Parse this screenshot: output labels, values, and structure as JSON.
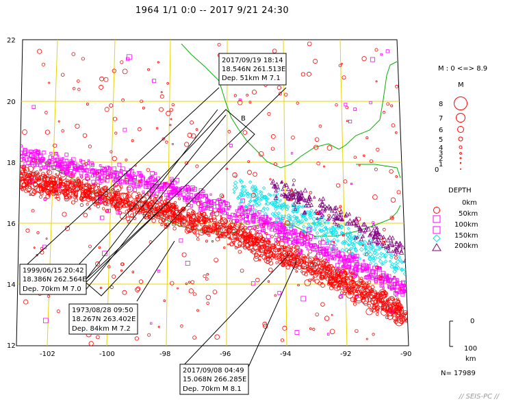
{
  "title": "1964 1/1 0:0 -- 2017 9/21 24:30",
  "axes": {
    "lat_ticks": [
      "22",
      "20",
      "18",
      "16",
      "14",
      "12"
    ],
    "lon_ticks": [
      "-102",
      "-100",
      "-98",
      "-96",
      "-94",
      "-92",
      "-90"
    ]
  },
  "section_label": "B",
  "callouts": [
    {
      "id": "c2017a",
      "lines": [
        "2017/09/19 18:14",
        "18.546N  261.513E",
        "Dep. 51km    M 7.1"
      ]
    },
    {
      "id": "c1999",
      "lines": [
        "1999/06/15 20:42",
        "18.386N  262.564E",
        "Dep. 70km    M 7.0"
      ]
    },
    {
      "id": "c1973",
      "lines": [
        "1973/08/28 09:50",
        "18.267N  263.402E",
        "Dep. 84km    M 7.2"
      ]
    },
    {
      "id": "c2017b",
      "lines": [
        "2017/09/08 04:49",
        "15.068N  266.285E",
        "Dep. 70km    M 8.1"
      ]
    }
  ],
  "legend": {
    "magnitude_range": "M : 0 <=> 8.9",
    "magnitude_title": "M",
    "magnitude_labels": [
      "8",
      "7",
      "6",
      "5",
      "4",
      "3",
      "2",
      "1",
      "0"
    ],
    "depth_title": "DEPTH",
    "depth_entries": [
      {
        "label": "0km",
        "shape": "circle",
        "color": "#ff0000"
      },
      {
        "label": "50km",
        "shape": "square",
        "color": "#ff00ff"
      },
      {
        "label": "100km",
        "shape": "square",
        "color": "#ff00ff"
      },
      {
        "label": "150km",
        "shape": "diamond",
        "color": "#00e5ee"
      },
      {
        "label": "200km",
        "shape": "triangle",
        "color": "#800080"
      }
    ],
    "depth_scale": {
      "top": "0",
      "bottom": "100",
      "unit": "km"
    },
    "count": "N= 17989"
  },
  "footer": "// SEIS-PC //",
  "colors": {
    "shallow": "#ff0000",
    "mid": "#ff00ff",
    "deep": "#00e5ee",
    "deepest": "#800080",
    "grid": "#e8d400",
    "border": "#00cc00",
    "coast": "#00b000"
  }
}
